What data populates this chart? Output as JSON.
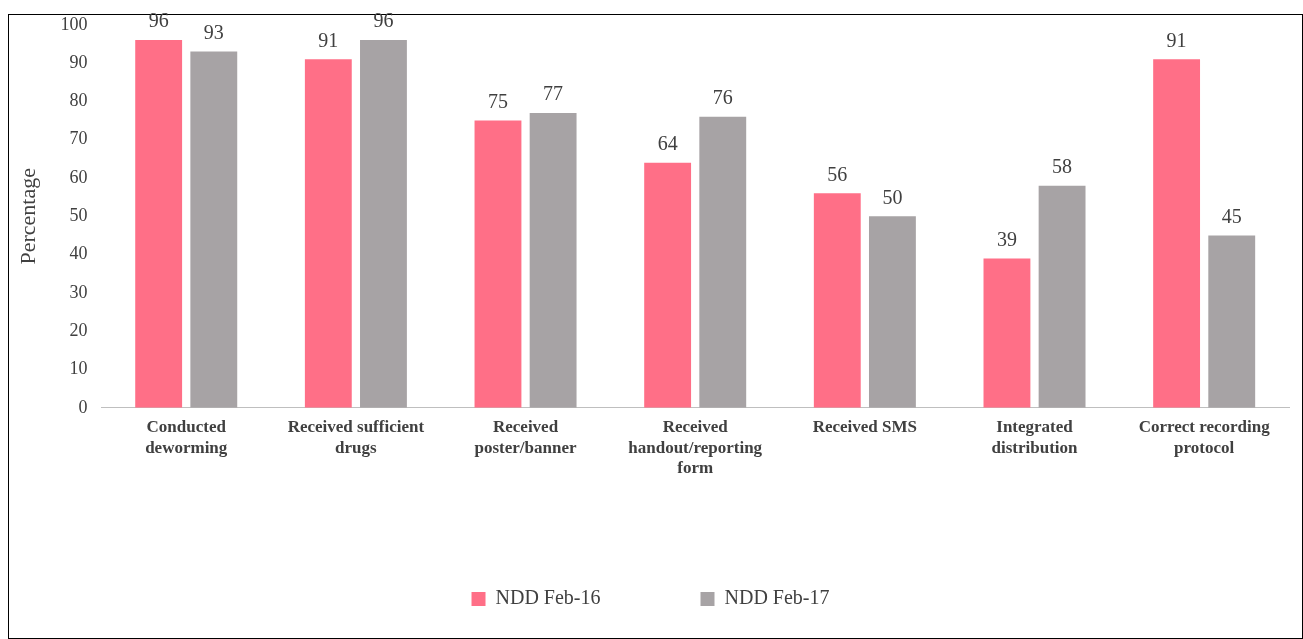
{
  "chart_data": {
    "type": "bar",
    "ylabel": "Percentage",
    "categories": [
      "Conducted deworming",
      "Received sufficient drugs",
      "Received poster/banner",
      "Received handout/reporting form",
      "Received SMS",
      "Integrated distribution",
      "Correct recording protocol"
    ],
    "series": [
      {
        "name": "NDD Feb-16",
        "color": "#ff6f87",
        "values": [
          96,
          91,
          75,
          64,
          56,
          39,
          91
        ]
      },
      {
        "name": "NDD Feb-17",
        "color": "#a7a3a5",
        "values": [
          93,
          96,
          77,
          76,
          50,
          58,
          45
        ]
      }
    ],
    "ylim": [
      0,
      100
    ],
    "yticks": [
      0,
      10,
      20,
      30,
      40,
      50,
      60,
      70,
      80,
      90,
      100
    ],
    "grid": false,
    "legend": "bottom",
    "data_labels": true
  }
}
